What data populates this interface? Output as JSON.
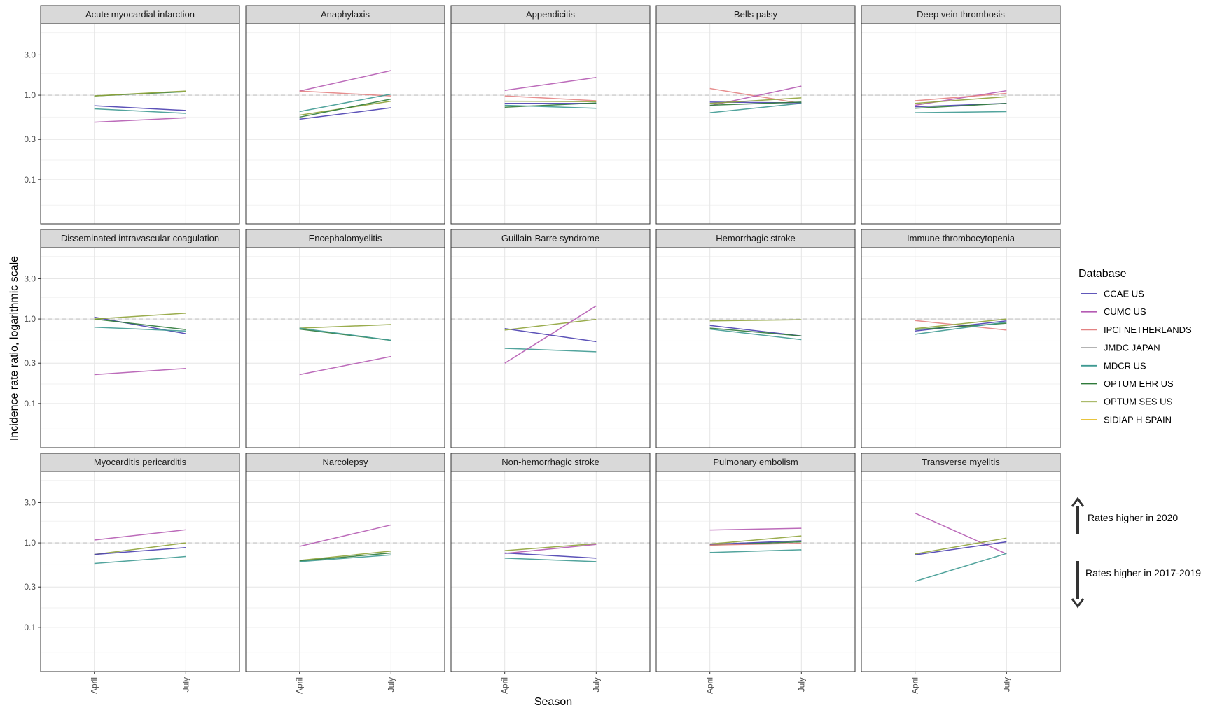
{
  "chart_data": {
    "type": "line",
    "facet_layout": "5 columns x 3 rows",
    "xlabel": "Season",
    "ylabel": "Incidence rate ratio, logarithmic scale",
    "y_scale": "log",
    "ylim": [
      0.03,
      7
    ],
    "y_ticks": [
      0.1,
      0.3,
      1.0,
      3.0
    ],
    "y_tick_labels": [
      "0.1",
      "0.3",
      "1.0",
      "3.0"
    ],
    "reference_line": 1.0,
    "categories": [
      "April",
      "July"
    ],
    "grid": true,
    "legend_position": "right",
    "legend_title": "Database",
    "legend": [
      {
        "name": "CCAE US",
        "color": "#4a3fb0"
      },
      {
        "name": "CUMC US",
        "color": "#b55bb3"
      },
      {
        "name": "IPCI NETHERLANDS",
        "color": "#e38282"
      },
      {
        "name": "JMDC JAPAN",
        "color": "#9a9a9a"
      },
      {
        "name": "MDCR US",
        "color": "#3f9a92"
      },
      {
        "name": "OPTUM EHR US",
        "color": "#2f7a3a"
      },
      {
        "name": "OPTUM SES US",
        "color": "#8fa33a"
      },
      {
        "name": "SIDIAP H SPAIN",
        "color": "#e8c43c"
      }
    ],
    "annotations": {
      "up": "Rates higher in 2020",
      "down": "Rates higher in 2017-2019"
    },
    "panels": [
      {
        "title": "Acute myocardial infarction",
        "series": [
          {
            "name": "CCAE US",
            "values": [
              0.75,
              0.66
            ]
          },
          {
            "name": "MDCR US",
            "values": [
              0.69,
              0.61
            ]
          },
          {
            "name": "CUMC US",
            "values": [
              0.48,
              0.54
            ]
          },
          {
            "name": "OPTUM EHR US",
            "values": [
              0.98,
              1.1
            ]
          },
          {
            "name": "OPTUM SES US",
            "values": [
              0.98,
              1.12
            ]
          }
        ]
      },
      {
        "title": "Anaphylaxis",
        "series": [
          {
            "name": "CUMC US",
            "values": [
              1.12,
              1.95
            ]
          },
          {
            "name": "IPCI NETHERLANDS",
            "values": [
              1.12,
              0.98
            ]
          },
          {
            "name": "MDCR US",
            "values": [
              0.64,
              1.03
            ]
          },
          {
            "name": "OPTUM SES US",
            "values": [
              0.58,
              0.85
            ]
          },
          {
            "name": "OPTUM EHR US",
            "values": [
              0.55,
              0.9
            ]
          },
          {
            "name": "CCAE US",
            "values": [
              0.52,
              0.71
            ]
          }
        ]
      },
      {
        "title": "Appendicitis",
        "series": [
          {
            "name": "CUMC US",
            "values": [
              1.14,
              1.62
            ]
          },
          {
            "name": "IPCI NETHERLANDS",
            "values": [
              0.98,
              0.86
            ]
          },
          {
            "name": "OPTUM SES US",
            "values": [
              0.85,
              0.84
            ]
          },
          {
            "name": "CCAE US",
            "values": [
              0.8,
              0.8
            ]
          },
          {
            "name": "OPTUM EHR US",
            "values": [
              0.72,
              0.81
            ]
          },
          {
            "name": "MDCR US",
            "values": [
              0.76,
              0.7
            ]
          }
        ]
      },
      {
        "title": "Bells palsy",
        "series": [
          {
            "name": "IPCI NETHERLANDS",
            "values": [
              1.2,
              0.8
            ]
          },
          {
            "name": "CUMC US",
            "values": [
              0.75,
              1.28
            ]
          },
          {
            "name": "CCAE US",
            "values": [
              0.83,
              0.81
            ]
          },
          {
            "name": "OPTUM SES US",
            "values": [
              0.8,
              0.93
            ]
          },
          {
            "name": "OPTUM EHR US",
            "values": [
              0.76,
              0.83
            ]
          },
          {
            "name": "MDCR US",
            "values": [
              0.62,
              0.8
            ]
          }
        ]
      },
      {
        "title": "Deep vein thrombosis",
        "series": [
          {
            "name": "CUMC US",
            "values": [
              0.76,
              1.13
            ]
          },
          {
            "name": "IPCI NETHERLANDS",
            "values": [
              0.86,
              1.05
            ]
          },
          {
            "name": "OPTUM SES US",
            "values": [
              0.8,
              0.96
            ]
          },
          {
            "name": "CCAE US",
            "values": [
              0.73,
              0.8
            ]
          },
          {
            "name": "OPTUM EHR US",
            "values": [
              0.7,
              0.8
            ]
          },
          {
            "name": "MDCR US",
            "values": [
              0.62,
              0.64
            ]
          }
        ]
      },
      {
        "title": "Disseminated intravascular coagulation",
        "series": [
          {
            "name": "CCAE US",
            "values": [
              1.05,
              0.67
            ]
          },
          {
            "name": "OPTUM EHR US",
            "values": [
              1.0,
              0.75
            ]
          },
          {
            "name": "OPTUM SES US",
            "values": [
              1.0,
              1.17
            ]
          },
          {
            "name": "MDCR US",
            "values": [
              0.8,
              0.72
            ]
          },
          {
            "name": "CUMC US",
            "values": [
              0.22,
              0.26
            ]
          }
        ]
      },
      {
        "title": "Encephalomyelitis",
        "series": [
          {
            "name": "OPTUM SES US",
            "values": [
              0.78,
              0.86
            ]
          },
          {
            "name": "OPTUM EHR US",
            "values": [
              0.76,
              0.56
            ]
          },
          {
            "name": "MDCR US",
            "values": [
              0.78,
              0.56
            ]
          },
          {
            "name": "CUMC US",
            "values": [
              0.22,
              0.36
            ]
          }
        ]
      },
      {
        "title": "Guillain-Barre syndrome",
        "series": [
          {
            "name": "CCAE US",
            "values": [
              0.77,
              0.54
            ]
          },
          {
            "name": "OPTUM SES US",
            "values": [
              0.74,
              0.99
            ]
          },
          {
            "name": "MDCR US",
            "values": [
              0.45,
              0.41
            ]
          },
          {
            "name": "CUMC US",
            "values": [
              0.3,
              1.43
            ]
          }
        ]
      },
      {
        "title": "Hemorrhagic stroke",
        "series": [
          {
            "name": "OPTUM SES US",
            "values": [
              0.95,
              0.98
            ]
          },
          {
            "name": "CCAE US",
            "values": [
              0.84,
              0.63
            ]
          },
          {
            "name": "OPTUM EHR US",
            "values": [
              0.78,
              0.63
            ]
          },
          {
            "name": "MDCR US",
            "values": [
              0.76,
              0.57
            ]
          }
        ]
      },
      {
        "title": "Immune thrombocytopenia",
        "series": [
          {
            "name": "IPCI NETHERLANDS",
            "values": [
              0.96,
              0.74
            ]
          },
          {
            "name": "OPTUM SES US",
            "values": [
              0.77,
              1.0
            ]
          },
          {
            "name": "CCAE US",
            "values": [
              0.72,
              0.95
            ]
          },
          {
            "name": "OPTUM EHR US",
            "values": [
              0.75,
              0.89
            ]
          },
          {
            "name": "MDCR US",
            "values": [
              0.66,
              0.92
            ]
          }
        ]
      },
      {
        "title": "Myocarditis pericarditis",
        "series": [
          {
            "name": "CUMC US",
            "values": [
              1.08,
              1.43
            ]
          },
          {
            "name": "OPTUM SES US",
            "values": [
              0.73,
              1.0
            ]
          },
          {
            "name": "CCAE US",
            "values": [
              0.73,
              0.88
            ]
          },
          {
            "name": "MDCR US",
            "values": [
              0.57,
              0.69
            ]
          }
        ]
      },
      {
        "title": "Narcolepsy",
        "series": [
          {
            "name": "CUMC US",
            "values": [
              0.91,
              1.63
            ]
          },
          {
            "name": "OPTUM SES US",
            "values": [
              0.62,
              0.8
            ]
          },
          {
            "name": "OPTUM EHR US",
            "values": [
              0.61,
              0.76
            ]
          },
          {
            "name": "MDCR US",
            "values": [
              0.6,
              0.72
            ]
          }
        ]
      },
      {
        "title": "Non-hemorrhagic stroke",
        "series": [
          {
            "name": "CUMC US",
            "values": [
              0.75,
              0.96
            ]
          },
          {
            "name": "OPTUM SES US",
            "values": [
              0.81,
              0.98
            ]
          },
          {
            "name": "CCAE US",
            "values": [
              0.76,
              0.66
            ]
          },
          {
            "name": "MDCR US",
            "values": [
              0.66,
              0.6
            ]
          }
        ]
      },
      {
        "title": "Pulmonary embolism",
        "series": [
          {
            "name": "CUMC US",
            "values": [
              1.42,
              1.49
            ]
          },
          {
            "name": "OPTUM SES US",
            "values": [
              0.97,
              1.21
            ]
          },
          {
            "name": "CCAE US",
            "values": [
              0.96,
              1.06
            ]
          },
          {
            "name": "OPTUM EHR US",
            "values": [
              0.94,
              1.03
            ]
          },
          {
            "name": "IPCI NETHERLANDS",
            "values": [
              0.94,
              0.99
            ]
          },
          {
            "name": "MDCR US",
            "values": [
              0.77,
              0.83
            ]
          }
        ]
      },
      {
        "title": "Transverse myelitis",
        "series": [
          {
            "name": "CUMC US",
            "values": [
              2.25,
              0.74
            ]
          },
          {
            "name": "OPTUM SES US",
            "values": [
              0.74,
              1.14
            ]
          },
          {
            "name": "CCAE US",
            "values": [
              0.72,
              1.03
            ]
          },
          {
            "name": "MDCR US",
            "values": [
              0.35,
              0.75
            ]
          }
        ]
      }
    ]
  }
}
